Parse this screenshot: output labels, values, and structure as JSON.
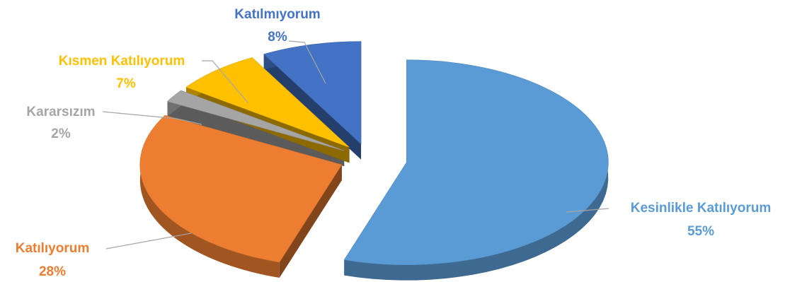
{
  "colors": {
    "kesinlikle": "#5b9bd5",
    "katiliyorum": "#ed7d31",
    "kararsizim": "#a5a5a5",
    "kismen": "#ffc000",
    "katilmiyorum": "#4472c4"
  },
  "chart_data": {
    "type": "pie",
    "style": "3d-exploded",
    "legend": "none",
    "slices": [
      {
        "label": "Kesinlikle Katılıyorum",
        "value": 55,
        "display": "55%",
        "color": "#5b9bd5"
      },
      {
        "label": "Katılıyorum",
        "value": 28,
        "display": "28%",
        "color": "#ed7d31"
      },
      {
        "label": "Kararsızım",
        "value": 2,
        "display": "2%",
        "color": "#a5a5a5"
      },
      {
        "label": "Kısmen Katılıyorum",
        "value": 7,
        "display": "7%",
        "color": "#ffc000"
      },
      {
        "label": "Katılmıyorum",
        "value": 8,
        "display": "8%",
        "color": "#4472c4"
      }
    ]
  }
}
